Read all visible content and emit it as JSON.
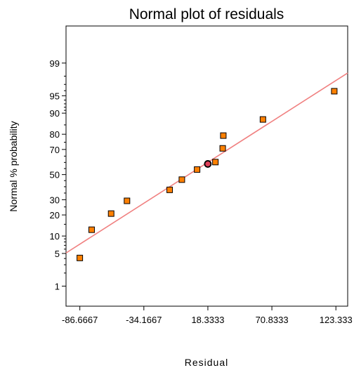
{
  "chart_data": {
    "type": "scatter",
    "title": "Normal plot of residuals",
    "xlabel": "Residual",
    "ylabel": "Normal % probability",
    "xlim": [
      -98,
      133
    ],
    "x_ticks": [
      {
        "value": -86.6667,
        "label": "-86.6667"
      },
      {
        "value": -34.1667,
        "label": "-34.1667"
      },
      {
        "value": 18.3333,
        "label": "18.3333"
      },
      {
        "value": 70.8333,
        "label": "70.8333"
      },
      {
        "value": 123.333,
        "label": "123.333"
      }
    ],
    "y_scale": "normal-probability",
    "y_ticks": [
      1,
      5,
      10,
      20,
      30,
      50,
      70,
      80,
      90,
      95,
      99
    ],
    "y_minor_ticks": [
      2,
      3,
      4,
      6,
      7,
      8,
      9,
      15,
      25,
      35,
      40,
      45,
      55,
      60,
      65,
      75,
      85,
      91,
      92,
      93,
      94,
      96,
      97,
      98
    ],
    "grid": false,
    "point_color": "#ff8000",
    "line_color": "#f08080",
    "points": [
      {
        "x": -86.7,
        "y": 4.1
      },
      {
        "x": -77,
        "y": 12.5
      },
      {
        "x": -61,
        "y": 20.8
      },
      {
        "x": -48,
        "y": 29.2
      },
      {
        "x": -13,
        "y": 37.5
      },
      {
        "x": -3,
        "y": 45.8
      },
      {
        "x": 9.5,
        "y": 54.2
      },
      {
        "x": 18.3,
        "y": 58.8,
        "highlight": true
      },
      {
        "x": 24.5,
        "y": 60.3
      },
      {
        "x": 30.5,
        "y": 70.8
      },
      {
        "x": 31,
        "y": 79.2
      },
      {
        "x": 63.5,
        "y": 87.5
      },
      {
        "x": 122,
        "y": 95.9
      }
    ],
    "fit_line": {
      "x": [
        -98,
        133
      ],
      "y": [
        5.1,
        98.3
      ]
    }
  }
}
